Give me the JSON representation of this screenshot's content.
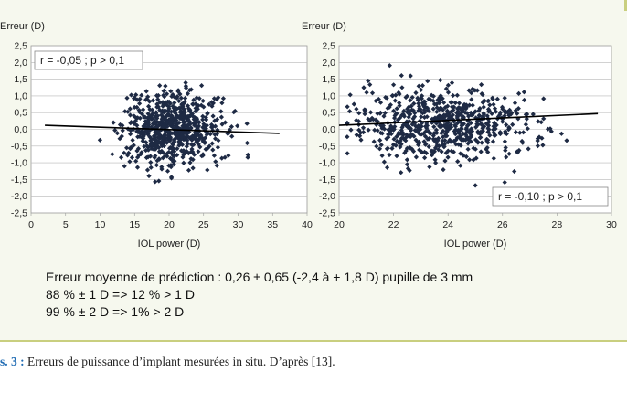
{
  "chart_data": [
    {
      "type": "scatter",
      "ylabel": "Erreur (D)",
      "xlabel": "IOL power (D)",
      "xlim": [
        0,
        40
      ],
      "ylim": [
        -2.5,
        2.5
      ],
      "xticks": [
        "0",
        "5",
        "10",
        "15",
        "20",
        "25",
        "30",
        "35",
        "40"
      ],
      "yticks": [
        "2,5",
        "2,0",
        "1,5",
        "1,0",
        "0,5",
        "0,0",
        "-0,5",
        "-1,0",
        "-1,5",
        "-2,0",
        "-2,5"
      ],
      "grid": "horizontal",
      "annotation": "r = -0,05 ;  p > 0,1",
      "annotation_position": "top-left",
      "trendline": {
        "x": [
          2,
          36
        ],
        "y": [
          0.12,
          -0.12
        ]
      },
      "points_summary": {
        "n_approx": 700,
        "x_center": 20.5,
        "x_spread": 3.5,
        "y_spread": 0.65
      }
    },
    {
      "type": "scatter",
      "ylabel": "Erreur (D)",
      "xlabel": "IOL power (D)",
      "xlim": [
        20,
        30
      ],
      "ylim": [
        -2.5,
        2.5
      ],
      "xticks": [
        "20",
        "22",
        "24",
        "26",
        "28",
        "30"
      ],
      "yticks": [
        "2,5",
        "2,0",
        "1,5",
        "1,0",
        "0,5",
        "0,0",
        "-0,5",
        "-1,0",
        "-1,5",
        "-2,0",
        "-2,5"
      ],
      "grid": "horizontal",
      "annotation": "r = -0,10 ;  p > 0,1",
      "annotation_position": "bottom-right",
      "trendline": {
        "x": [
          20,
          29.5
        ],
        "y": [
          0.12,
          0.47
        ]
      },
      "points_summary": {
        "n_approx": 700,
        "x_center": 23.8,
        "x_spread": 1.6,
        "y_spread": 0.65
      }
    }
  ],
  "summary": {
    "line1": "Erreur moyenne de prédiction : 0,26 ± 0,65 (-2,4 à + 1,8 D) pupille de 3 mm",
    "line2": "88 % ± 1 D => 12 % > 1 D",
    "line3": "99 % ± 2 D => 1% > 2 D"
  },
  "caption": {
    "label": "s. 3 :",
    "text": " Erreurs de puissance d’implant mesurées in situ. D’après [13]."
  },
  "colors": {
    "marker": "#1e2a44",
    "panel": "#f6f8ee",
    "rule": "#c9cf7f"
  }
}
